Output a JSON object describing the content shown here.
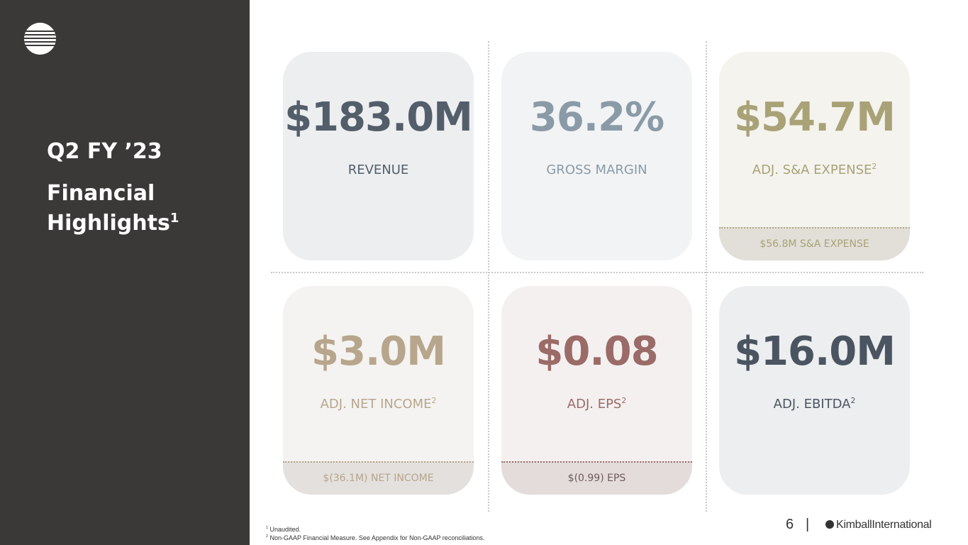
{
  "sidebar": {
    "logo_icon": "kimball-circle-logo-icon",
    "period": "Q2 FY ’23",
    "heading": "Financial Highlights",
    "heading_sup": "1"
  },
  "metrics": [
    {
      "value": "$183.0M",
      "label": "REVENUE",
      "label_sup": "",
      "footer": ""
    },
    {
      "value": "36.2%",
      "label": "GROSS MARGIN",
      "label_sup": "",
      "footer": ""
    },
    {
      "value": "$54.7M",
      "label": "ADJ. S&A EXPENSE",
      "label_sup": "2",
      "footer": "$56.8M S&A EXPENSE"
    },
    {
      "value": "$3.0M",
      "label": "ADJ. NET INCOME",
      "label_sup": "2",
      "footer": "$(36.1M) NET INCOME"
    },
    {
      "value": "$0.08",
      "label": "ADJ. EPS",
      "label_sup": "2",
      "footer": "$(0.99) EPS"
    },
    {
      "value": "$16.0M",
      "label": "ADJ. EBITDA",
      "label_sup": "2",
      "footer": ""
    }
  ],
  "footnotes": {
    "n1_mark": "1",
    "n1": "Unaudited.",
    "n2_mark": "2",
    "n2": "Non-GAAP Financial Measure. See Appendix for Non-GAAP reconciliations."
  },
  "footer": {
    "page_number": "6",
    "separator": "|",
    "brand": "KimballInternational",
    "brand_icon": "kimball-mark-icon"
  },
  "colors": {
    "sidebar": "#3a3937",
    "revenue": "#535e6a",
    "gross_margin": "#8a9ba7",
    "sga": "#a9a277",
    "net_income": "#b7a68c",
    "eps": "#9b6b68",
    "ebitda": "#4b5561"
  }
}
